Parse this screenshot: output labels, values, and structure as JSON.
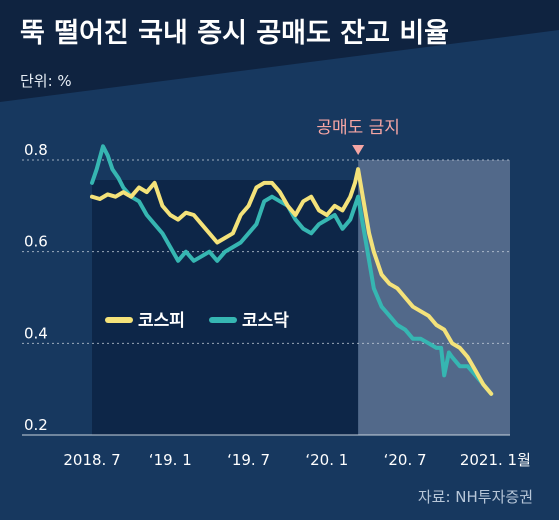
{
  "colors": {
    "background": "#17385f",
    "header_band": "#0f2340",
    "pre_ban_area": "#0d2648",
    "ban_area": "#52698a",
    "kospi": "#f4e27a",
    "kosdaq": "#36b6b2",
    "annotation": "#f6a6a4",
    "grid": "#c9d3de"
  },
  "chart_data": {
    "type": "line",
    "title": "뚝 떨어진 국내 증시 공매도 잔고 비율",
    "unit_label": "단위: %",
    "source": "자료: NH투자증권",
    "ylim": [
      0.2,
      0.8
    ],
    "y_ticks": [
      "0.8",
      "0.6",
      "0.4",
      "0.2"
    ],
    "y_tick_values": [
      0.8,
      0.6,
      0.4,
      0.2
    ],
    "x_range": [
      2018.5,
      2021.17
    ],
    "x_ticks": [
      {
        "label": "2018. 7",
        "x": 2018.5
      },
      {
        "label": "‘19. 1",
        "x": 2019.0
      },
      {
        "label": "‘19. 7",
        "x": 2019.5
      },
      {
        "label": "‘20. 1",
        "x": 2020.0
      },
      {
        "label": "‘20. 7",
        "x": 2020.5
      },
      {
        "label": "2021. 1월",
        "x": 2021.0
      }
    ],
    "grid": true,
    "legend_position": "middle-left",
    "annotation": {
      "text": "공매도 금지",
      "x": 2020.2
    },
    "shaded_region_start": 2020.2,
    "series": [
      {
        "name": "코스피",
        "color_key": "kospi",
        "x": [
          2018.5,
          2018.55,
          2018.6,
          2018.65,
          2018.7,
          2018.75,
          2018.8,
          2018.85,
          2018.9,
          2018.95,
          2019.0,
          2019.05,
          2019.1,
          2019.15,
          2019.2,
          2019.25,
          2019.3,
          2019.35,
          2019.4,
          2019.45,
          2019.5,
          2019.55,
          2019.6,
          2019.65,
          2019.7,
          2019.75,
          2019.8,
          2019.85,
          2019.9,
          2019.95,
          2020.0,
          2020.05,
          2020.1,
          2020.15,
          2020.18,
          2020.2,
          2020.23,
          2020.27,
          2020.3,
          2020.35,
          2020.4,
          2020.45,
          2020.5,
          2020.55,
          2020.6,
          2020.65,
          2020.7,
          2020.75,
          2020.8,
          2020.85,
          2020.9,
          2020.95,
          2021.0,
          2021.05
        ],
        "y": [
          0.72,
          0.715,
          0.725,
          0.72,
          0.73,
          0.72,
          0.74,
          0.73,
          0.75,
          0.7,
          0.68,
          0.67,
          0.685,
          0.68,
          0.66,
          0.64,
          0.62,
          0.63,
          0.64,
          0.68,
          0.7,
          0.74,
          0.75,
          0.75,
          0.73,
          0.7,
          0.68,
          0.71,
          0.72,
          0.69,
          0.68,
          0.7,
          0.69,
          0.72,
          0.75,
          0.78,
          0.72,
          0.64,
          0.6,
          0.55,
          0.53,
          0.52,
          0.5,
          0.48,
          0.47,
          0.46,
          0.44,
          0.43,
          0.4,
          0.39,
          0.37,
          0.34,
          0.31,
          0.29
        ]
      },
      {
        "name": "코스닥",
        "color_key": "kosdaq",
        "x": [
          2018.5,
          2018.53,
          2018.57,
          2018.6,
          2018.63,
          2018.67,
          2018.7,
          2018.75,
          2018.8,
          2018.85,
          2018.9,
          2018.95,
          2019.0,
          2019.05,
          2019.1,
          2019.15,
          2019.2,
          2019.25,
          2019.3,
          2019.35,
          2019.4,
          2019.45,
          2019.5,
          2019.55,
          2019.6,
          2019.65,
          2019.7,
          2019.75,
          2019.8,
          2019.85,
          2019.9,
          2019.95,
          2020.0,
          2020.05,
          2020.1,
          2020.15,
          2020.18,
          2020.2,
          2020.23,
          2020.27,
          2020.3,
          2020.35,
          2020.4,
          2020.45,
          2020.5,
          2020.55,
          2020.6,
          2020.65,
          2020.7,
          2020.73,
          2020.75,
          2020.78,
          2020.8,
          2020.85,
          2020.9,
          2020.95,
          2021.0,
          2021.05
        ],
        "y": [
          0.75,
          0.78,
          0.83,
          0.81,
          0.78,
          0.76,
          0.74,
          0.72,
          0.71,
          0.68,
          0.66,
          0.64,
          0.61,
          0.58,
          0.6,
          0.58,
          0.59,
          0.6,
          0.58,
          0.6,
          0.61,
          0.62,
          0.64,
          0.66,
          0.71,
          0.72,
          0.71,
          0.7,
          0.67,
          0.65,
          0.64,
          0.66,
          0.67,
          0.68,
          0.65,
          0.67,
          0.7,
          0.72,
          0.66,
          0.58,
          0.52,
          0.48,
          0.46,
          0.44,
          0.43,
          0.41,
          0.41,
          0.4,
          0.39,
          0.39,
          0.33,
          0.38,
          0.37,
          0.35,
          0.35,
          0.33,
          0.31,
          0.29
        ]
      }
    ]
  }
}
